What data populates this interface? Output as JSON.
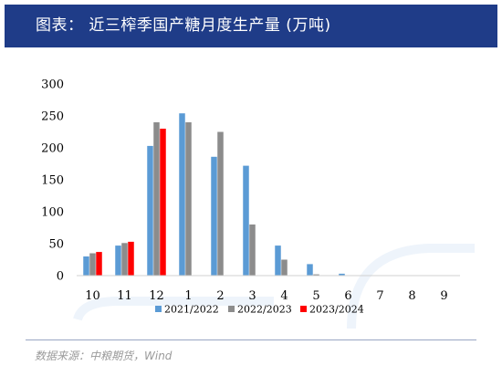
{
  "header": {
    "title": "图表：  近三榨季国产糖月度生产量 (万吨)"
  },
  "source": "数据来源：中粮期货，Wind",
  "chart_data": {
    "type": "bar",
    "title": "图表：  近三榨季国产糖月度生产量 (万吨)",
    "xlabel": "",
    "ylabel": "",
    "categories": [
      "10",
      "11",
      "12",
      "1",
      "2",
      "3",
      "4",
      "5",
      "6",
      "7",
      "8",
      "9"
    ],
    "ylim": [
      0,
      300
    ],
    "yticks": [
      0,
      50,
      100,
      150,
      200,
      250,
      300
    ],
    "grid": false,
    "legend": "bottom",
    "series": [
      {
        "name": "2021/2022",
        "color": "#5b9bd5",
        "values": [
          30,
          47,
          203,
          254,
          186,
          172,
          47,
          18,
          3,
          0,
          0,
          0
        ]
      },
      {
        "name": "2022/2023",
        "color": "#8c8c8c",
        "values": [
          35,
          51,
          240,
          240,
          225,
          80,
          25,
          2,
          0,
          0,
          0,
          0
        ]
      },
      {
        "name": "2023/2024",
        "color": "#ff0000",
        "values": [
          37,
          53,
          230,
          null,
          null,
          null,
          null,
          null,
          null,
          null,
          null,
          null
        ]
      }
    ]
  }
}
